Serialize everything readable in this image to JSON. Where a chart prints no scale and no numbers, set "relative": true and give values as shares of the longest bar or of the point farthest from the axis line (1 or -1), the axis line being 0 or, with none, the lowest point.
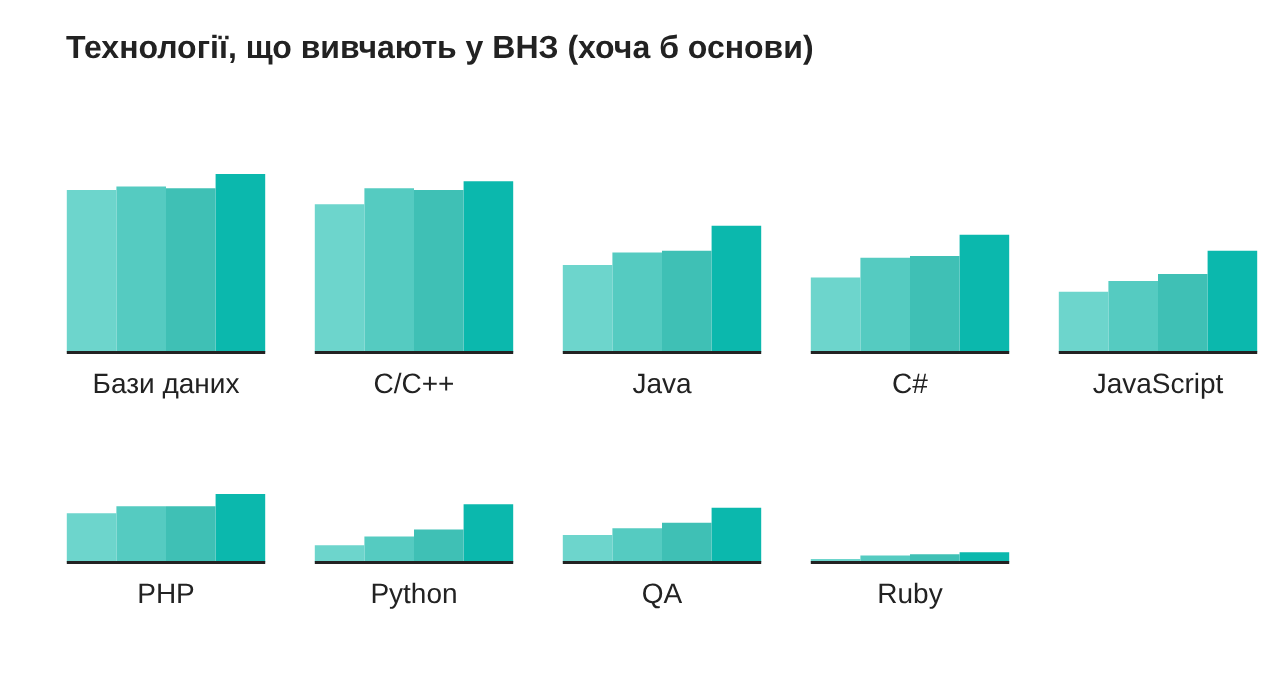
{
  "chart_data": [
    {
      "type": "bar",
      "title": "Технології, що вивчають у ВНЗ (хоча б основи)",
      "relative": true,
      "grid": false,
      "categories": [
        "Бази даних",
        "C/C++",
        "Java",
        "C#",
        "JavaScript"
      ],
      "series": [
        {
          "color": "#6dd5cc",
          "values": [
            0.91,
            0.83,
            0.49,
            0.42,
            0.34
          ]
        },
        {
          "color": "#55cbc1",
          "values": [
            0.93,
            0.92,
            0.56,
            0.53,
            0.4
          ]
        },
        {
          "color": "#3fc0b5",
          "values": [
            0.92,
            0.91,
            0.57,
            0.54,
            0.44
          ]
        },
        {
          "color": "#0bb8ad",
          "values": [
            1,
            0.96,
            0.71,
            0.66,
            0.57
          ]
        }
      ]
    },
    {
      "type": "bar",
      "relative": true,
      "grid": false,
      "categories": [
        "PHP",
        "Python",
        "QA",
        "Ruby"
      ],
      "series": [
        {
          "color": "#6dd5cc",
          "values": [
            0.72,
            0.25,
            0.4,
            0.05
          ]
        },
        {
          "color": "#55cbc1",
          "values": [
            0.82,
            0.38,
            0.5,
            0.1
          ]
        },
        {
          "color": "#3fc0b5",
          "values": [
            0.82,
            0.48,
            0.58,
            0.12
          ]
        },
        {
          "color": "#0bb8ad",
          "values": [
            1,
            0.85,
            0.8,
            0.15
          ]
        }
      ]
    }
  ]
}
